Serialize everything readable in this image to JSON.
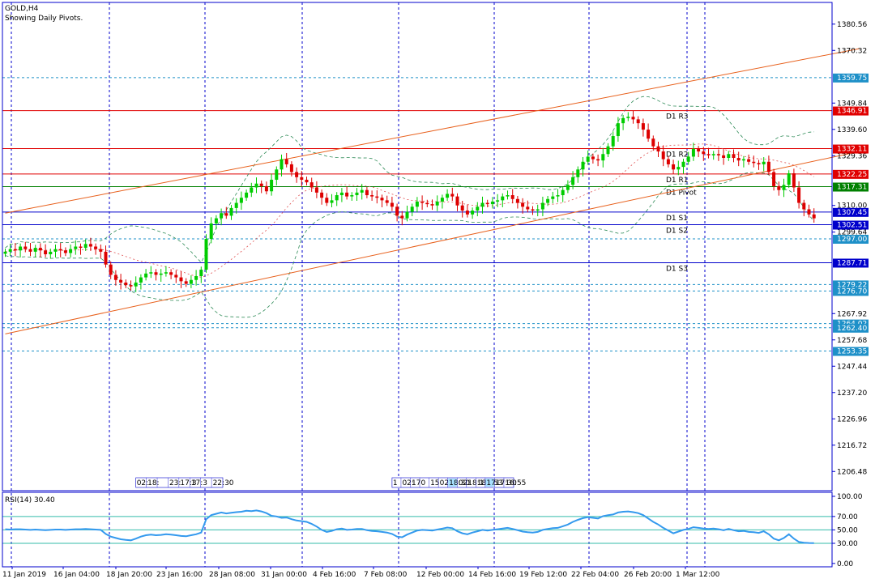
{
  "header": {
    "symbol": "GOLD,H4",
    "subtitle": "Showing Daily Pivots."
  },
  "colors": {
    "axis": "#0000cc",
    "grid": "#0000cc",
    "bull": "#00cc00",
    "bear": "#dd0000",
    "channel": "#e8601c",
    "pivot_res": "#e00000",
    "pivot_mid": "#008000",
    "pivot_sup": "#0000cc",
    "bands": "#2e8b57",
    "rsi": "#3399ee",
    "rsi_level": "#33bbaa"
  },
  "chart_data": [
    {
      "type": "candlestick",
      "symbol": "GOLD",
      "timeframe": "H4",
      "ylim": [
        1199.0,
        1389.0
      ],
      "y_ticks": [
        "1380.56",
        "1370.32",
        "1349.84",
        "1339.60",
        "1329.36",
        "1310.00",
        "1299.64",
        "1267.92",
        "1257.68",
        "1247.44",
        "1237.20",
        "1226.96",
        "1216.72",
        "1206.48"
      ],
      "x_ticks": [
        "11 Jan 2019",
        "16 Jan 04:00",
        "18 Jan 20:00",
        "23 Jan 16:00",
        "28 Jan 08:00",
        "31 Jan 00:00",
        "4 Feb 16:00",
        "7 Feb 08:00",
        "12 Feb 00:00",
        "14 Feb 16:00",
        "19 Feb 12:00",
        "22 Feb 04:00",
        "26 Feb 20:00",
        "1 Mar 12:00"
      ],
      "pivot_lines": [
        {
          "label": "D1 R3",
          "value": 1346.91,
          "tag": "1346.91",
          "kind": "res"
        },
        {
          "label": "D1 R2",
          "value": 1332.11,
          "tag": "1332.11",
          "kind": "res"
        },
        {
          "label": "D1 R1",
          "value": 1322.25,
          "tag": "1322.25",
          "kind": "res"
        },
        {
          "label": "D1 Pivot",
          "value": 1317.31,
          "tag": "1317.31",
          "kind": "mid"
        },
        {
          "label": "D1 S1",
          "value": 1307.45,
          "tag": "1307.45",
          "kind": "sup"
        },
        {
          "label": "D1 S2",
          "value": 1302.51,
          "tag": "1302.51",
          "kind": "sup"
        },
        {
          "label": "D1 S3",
          "value": 1287.71,
          "tag": "1287.71",
          "kind": "sup"
        }
      ],
      "levels": [
        {
          "value": 1359.75,
          "tag": "1359.75"
        },
        {
          "value": 1297.0,
          "tag": "1297.00"
        },
        {
          "value": 1279.22,
          "tag": "1279.22"
        },
        {
          "value": 1276.7,
          "tag": "1276.70"
        },
        {
          "value": 1264.02,
          "tag": "1264.02"
        },
        {
          "value": 1262.4,
          "tag": "1262.40"
        },
        {
          "value": 1253.35,
          "tag": "1253.35"
        }
      ],
      "channel": {
        "upper": [
          [
            0,
            1307.0
          ],
          [
            170,
            1371.0
          ]
        ],
        "lower": [
          [
            0,
            1260.0
          ],
          [
            170,
            1331.0
          ]
        ]
      },
      "time_strips": [
        {
          "slots": [
            26,
            28.3
          ],
          "items": [
            "02:",
            "18:",
            "",
            "23:",
            "17:3",
            "17:3",
            "",
            "22:30"
          ]
        },
        {
          "slots": [
            77,
            106
          ],
          "items": [
            "1",
            "02:",
            "17",
            "0",
            "15",
            "02:",
            "18:30",
            "02:",
            "18:15",
            "18:45",
            "17:3",
            "17:30",
            "16:55"
          ]
        }
      ],
      "close_series": [
        1292.0,
        1293.0,
        1292.5,
        1294.0,
        1293.0,
        1292.0,
        1293.5,
        1292.5,
        1291.0,
        1292.0,
        1293.0,
        1292.5,
        1291.5,
        1293.0,
        1294.0,
        1293.5,
        1295.0,
        1294.0,
        1293.0,
        1292.0,
        1287.0,
        1283.0,
        1281.0,
        1280.0,
        1279.0,
        1278.5,
        1280.0,
        1282.0,
        1283.5,
        1284.0,
        1283.0,
        1283.5,
        1284.0,
        1283.0,
        1282.0,
        1280.5,
        1279.5,
        1281.0,
        1282.5,
        1285.0,
        1297.0,
        1303.0,
        1305.0,
        1307.0,
        1306.0,
        1309.0,
        1311.0,
        1313.0,
        1315.0,
        1317.0,
        1318.5,
        1317.5,
        1315.5,
        1320.0,
        1324.0,
        1328.0,
        1326.0,
        1323.0,
        1321.0,
        1320.0,
        1319.0,
        1317.0,
        1315.0,
        1313.0,
        1311.0,
        1312.0,
        1314.0,
        1315.0,
        1313.5,
        1314.0,
        1315.0,
        1316.0,
        1314.0,
        1313.5,
        1313.0,
        1312.0,
        1311.0,
        1309.5,
        1306.0,
        1305.0,
        1307.5,
        1309.5,
        1311.5,
        1311.0,
        1310.5,
        1310.0,
        1311.5,
        1313.0,
        1314.5,
        1313.5,
        1310.0,
        1308.0,
        1306.5,
        1308.0,
        1309.5,
        1311.0,
        1310.5,
        1311.5,
        1312.0,
        1313.5,
        1314.0,
        1312.5,
        1311.0,
        1309.5,
        1308.5,
        1308.0,
        1308.5,
        1311.0,
        1312.5,
        1313.5,
        1314.0,
        1316.0,
        1318.0,
        1321.0,
        1324.0,
        1327.0,
        1329.0,
        1328.0,
        1327.5,
        1330.0,
        1333.0,
        1337.0,
        1342.0,
        1344.0,
        1344.5,
        1343.5,
        1342.0,
        1339.5,
        1336.0,
        1333.0,
        1331.0,
        1328.0,
        1326.0,
        1324.0,
        1325.0,
        1327.0,
        1329.0,
        1332.0,
        1331.0,
        1330.0,
        1329.5,
        1330.0,
        1329.5,
        1328.5,
        1330.0,
        1328.5,
        1327.5,
        1328.0,
        1327.0,
        1326.5,
        1326.0,
        1327.0,
        1323.0,
        1317.5,
        1316.0,
        1318.0,
        1322.5,
        1317.0,
        1311.0,
        1308.5,
        1306.5,
        1305.0
      ]
    },
    {
      "type": "line",
      "title": "RSI(14) 30.40",
      "ylim": [
        -5,
        106
      ],
      "y_ticks": [
        "100.00",
        "70.00",
        "50.00",
        "30.00",
        "0.00"
      ],
      "levels": [
        70,
        50,
        30
      ],
      "series": [
        {
          "values": [
            51.0,
            50.5,
            51.0,
            51.0,
            50.5,
            50.0,
            50.5,
            50.0,
            49.5,
            50.0,
            50.5,
            50.5,
            50.0,
            50.5,
            51.0,
            51.0,
            51.5,
            51.0,
            50.5,
            50.0,
            44.0,
            40.0,
            38.0,
            36.0,
            35.0,
            34.5,
            37.0,
            40.0,
            42.0,
            43.0,
            42.0,
            42.5,
            43.5,
            43.0,
            42.0,
            41.0,
            40.5,
            42.0,
            43.5,
            46.0,
            66.0,
            72.0,
            74.0,
            76.0,
            74.5,
            75.5,
            76.5,
            77.0,
            78.5,
            78.0,
            79.0,
            77.5,
            75.0,
            71.0,
            70.0,
            68.0,
            68.5,
            66.0,
            64.0,
            63.0,
            62.0,
            59.0,
            55.0,
            50.0,
            47.0,
            48.5,
            51.0,
            52.0,
            50.0,
            50.5,
            51.5,
            51.5,
            49.5,
            48.5,
            48.0,
            47.0,
            46.0,
            44.0,
            40.0,
            39.0,
            43.0,
            46.0,
            49.0,
            50.0,
            49.5,
            49.0,
            50.5,
            52.0,
            53.5,
            52.5,
            48.0,
            45.0,
            43.5,
            46.0,
            48.0,
            50.0,
            49.0,
            50.0,
            51.0,
            52.0,
            53.0,
            51.5,
            49.5,
            47.5,
            46.5,
            46.0,
            47.0,
            50.0,
            51.5,
            52.5,
            53.0,
            55.5,
            58.0,
            62.0,
            65.0,
            67.5,
            69.0,
            68.0,
            67.0,
            70.5,
            72.0,
            73.0,
            76.0,
            77.0,
            77.5,
            76.5,
            75.0,
            72.0,
            67.0,
            62.0,
            58.0,
            53.0,
            49.0,
            45.0,
            47.5,
            50.0,
            51.5,
            54.0,
            53.0,
            52.0,
            51.5,
            52.0,
            51.0,
            49.5,
            51.5,
            49.5,
            48.0,
            48.5,
            47.0,
            46.5,
            45.5,
            48.0,
            43.5,
            37.0,
            34.5,
            38.0,
            43.5,
            37.0,
            32.0,
            31.0,
            30.5,
            30.4
          ]
        }
      ],
      "x_ticks": [
        "11 Jan 2019",
        "16 Jan 04:00",
        "18 Jan 20:00",
        "23 Jan 16:00",
        "28 Jan 08:00",
        "31 Jan 00:00",
        "4 Feb 16:00",
        "7 Feb 08:00",
        "12 Feb 00:00",
        "14 Feb 16:00",
        "19 Feb 12:00",
        "22 Feb 04:00",
        "26 Feb 20:00",
        "1 Mar 12:00"
      ]
    }
  ]
}
